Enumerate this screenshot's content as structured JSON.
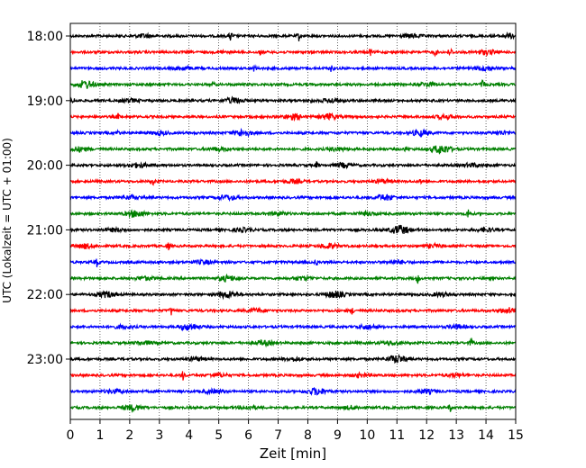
{
  "chart_data": {
    "type": "line",
    "title": "",
    "xlabel": "Zeit  [min]",
    "ylabel": "UTC (Lokalzeit = UTC + 01:00)",
    "xlim": [
      0,
      15
    ],
    "x_ticks": [
      "0",
      "1",
      "2",
      "3",
      "4",
      "5",
      "6",
      "7",
      "8",
      "9",
      "10",
      "11",
      "12",
      "13",
      "14",
      "15"
    ],
    "y_tick_labels": [
      "18:00",
      "19:00",
      "20:00",
      "21:00",
      "22:00",
      "23:00"
    ],
    "grid": "vertical dotted",
    "colors": [
      "#000000",
      "#ff0000",
      "#0000ff",
      "#008000"
    ],
    "traces": [
      {
        "start": "18:00",
        "color": "#000000",
        "events": [
          [
            5.4,
            1.0,
            "spike"
          ],
          [
            7.7,
            0.7,
            "spike"
          ],
          [
            2.5,
            0.3,
            "burst"
          ],
          [
            11.5,
            0.3,
            "burst"
          ],
          [
            14.8,
            0.4,
            "burst"
          ]
        ]
      },
      {
        "start": "18:15",
        "color": "#ff0000",
        "events": [
          [
            5.1,
            0.5,
            "spike"
          ],
          [
            6.4,
            0.4,
            "spike"
          ],
          [
            10.1,
            0.6,
            "spike"
          ],
          [
            12.3,
            0.6,
            "spike"
          ],
          [
            12.8,
            1.0,
            "spike"
          ],
          [
            14.0,
            0.4,
            "burst"
          ]
        ]
      },
      {
        "start": "18:30",
        "color": "#0000ff",
        "events": [
          [
            6.2,
            0.6,
            "spike"
          ],
          [
            8.8,
            0.8,
            "spike"
          ],
          [
            3.8,
            0.3,
            "burst"
          ],
          [
            14.0,
            0.4,
            "burst"
          ]
        ]
      },
      {
        "start": "18:45",
        "color": "#008000",
        "events": [
          [
            0.5,
            0.7,
            "burst"
          ],
          [
            4.8,
            0.4,
            "spike"
          ],
          [
            13.9,
            0.9,
            "spike"
          ],
          [
            12.0,
            0.3,
            "burst"
          ]
        ]
      },
      {
        "start": "19:00",
        "color": "#000000",
        "events": [
          [
            0.1,
            0.6,
            "spike"
          ],
          [
            5.5,
            0.5,
            "burst"
          ],
          [
            8.1,
            0.4,
            "spike"
          ],
          [
            8.8,
            0.4,
            "burst"
          ],
          [
            2.0,
            0.3,
            "burst"
          ]
        ]
      },
      {
        "start": "19:15",
        "color": "#ff0000",
        "events": [
          [
            1.6,
            0.5,
            "spike"
          ],
          [
            7.5,
            0.5,
            "burst"
          ],
          [
            8.7,
            0.5,
            "burst"
          ],
          [
            12.6,
            0.3,
            "burst"
          ]
        ]
      },
      {
        "start": "19:30",
        "color": "#0000ff",
        "events": [
          [
            1.6,
            0.5,
            "spike"
          ],
          [
            5.8,
            0.6,
            "burst"
          ],
          [
            11.8,
            0.5,
            "burst"
          ],
          [
            3.0,
            0.3,
            "burst"
          ],
          [
            14.5,
            0.3,
            "burst"
          ]
        ]
      },
      {
        "start": "19:45",
        "color": "#008000",
        "events": [
          [
            11.3,
            0.5,
            "spike"
          ],
          [
            12.5,
            0.8,
            "burst"
          ],
          [
            0.3,
            0.4,
            "burst"
          ],
          [
            5.0,
            0.3,
            "burst"
          ],
          [
            9.0,
            0.3,
            "burst"
          ]
        ]
      },
      {
        "start": "20:00",
        "color": "#000000",
        "events": [
          [
            8.3,
            0.6,
            "spike"
          ],
          [
            9.2,
            0.4,
            "burst"
          ],
          [
            2.3,
            0.4,
            "burst"
          ],
          [
            13.5,
            0.3,
            "burst"
          ]
        ]
      },
      {
        "start": "20:15",
        "color": "#ff0000",
        "events": [
          [
            2.8,
            0.8,
            "spike"
          ],
          [
            11.8,
            0.4,
            "spike"
          ],
          [
            10.5,
            0.3,
            "burst"
          ],
          [
            7.5,
            0.3,
            "burst"
          ]
        ]
      },
      {
        "start": "20:30",
        "color": "#0000ff",
        "events": [
          [
            5.3,
            0.4,
            "burst"
          ],
          [
            10.6,
            0.5,
            "burst"
          ],
          [
            2.0,
            0.3,
            "burst"
          ]
        ]
      },
      {
        "start": "20:45",
        "color": "#008000",
        "events": [
          [
            2.2,
            0.6,
            "burst"
          ],
          [
            13.4,
            0.8,
            "spike"
          ],
          [
            7.0,
            0.3,
            "burst"
          ],
          [
            10.0,
            0.3,
            "burst"
          ]
        ]
      },
      {
        "start": "21:00",
        "color": "#000000",
        "events": [
          [
            11.1,
            0.8,
            "burst"
          ],
          [
            5.8,
            0.3,
            "burst"
          ],
          [
            1.5,
            0.3,
            "burst"
          ],
          [
            14.0,
            0.3,
            "burst"
          ]
        ]
      },
      {
        "start": "21:15",
        "color": "#ff0000",
        "events": [
          [
            3.3,
            0.8,
            "spike"
          ],
          [
            0.5,
            0.4,
            "burst"
          ],
          [
            8.7,
            0.4,
            "burst"
          ],
          [
            12.2,
            0.3,
            "burst"
          ]
        ]
      },
      {
        "start": "21:30",
        "color": "#0000ff",
        "events": [
          [
            0.9,
            0.7,
            "spike"
          ],
          [
            8.3,
            0.5,
            "spike"
          ],
          [
            4.5,
            0.3,
            "burst"
          ],
          [
            11.0,
            0.3,
            "burst"
          ]
        ]
      },
      {
        "start": "21:45",
        "color": "#008000",
        "events": [
          [
            5.3,
            0.5,
            "burst"
          ],
          [
            11.7,
            0.8,
            "spike"
          ],
          [
            7.8,
            0.3,
            "burst"
          ],
          [
            2.5,
            0.3,
            "burst"
          ]
        ]
      },
      {
        "start": "22:00",
        "color": "#000000",
        "events": [
          [
            1.2,
            0.5,
            "burst"
          ],
          [
            5.3,
            0.6,
            "burst"
          ],
          [
            8.9,
            0.6,
            "burst"
          ],
          [
            12.5,
            0.3,
            "burst"
          ]
        ]
      },
      {
        "start": "22:15",
        "color": "#ff0000",
        "events": [
          [
            3.4,
            0.7,
            "spike"
          ],
          [
            9.5,
            0.6,
            "spike"
          ],
          [
            6.3,
            0.3,
            "burst"
          ],
          [
            14.8,
            0.5,
            "burst"
          ]
        ]
      },
      {
        "start": "22:30",
        "color": "#0000ff",
        "events": [
          [
            4.0,
            0.6,
            "burst"
          ],
          [
            10.0,
            0.4,
            "burst"
          ],
          [
            1.8,
            0.3,
            "burst"
          ],
          [
            13.0,
            0.3,
            "burst"
          ]
        ]
      },
      {
        "start": "22:45",
        "color": "#008000",
        "events": [
          [
            6.5,
            0.4,
            "burst"
          ],
          [
            13.5,
            0.8,
            "spike"
          ],
          [
            10.8,
            0.3,
            "burst"
          ],
          [
            2.5,
            0.3,
            "burst"
          ]
        ]
      },
      {
        "start": "23:00",
        "color": "#000000",
        "events": [
          [
            11.0,
            0.7,
            "burst"
          ],
          [
            4.2,
            0.3,
            "burst"
          ],
          [
            7.5,
            0.3,
            "burst"
          ]
        ]
      },
      {
        "start": "23:15",
        "color": "#ff0000",
        "events": [
          [
            3.8,
            0.8,
            "spike"
          ],
          [
            5.0,
            0.3,
            "burst"
          ],
          [
            9.8,
            0.3,
            "burst"
          ],
          [
            13.0,
            0.3,
            "burst"
          ]
        ]
      },
      {
        "start": "23:30",
        "color": "#0000ff",
        "events": [
          [
            8.3,
            0.6,
            "burst"
          ],
          [
            1.5,
            0.3,
            "burst"
          ],
          [
            4.8,
            0.3,
            "burst"
          ],
          [
            12.0,
            0.3,
            "burst"
          ]
        ]
      },
      {
        "start": "23:45",
        "color": "#008000",
        "events": [
          [
            2.1,
            0.5,
            "burst"
          ],
          [
            12.8,
            0.6,
            "spike"
          ],
          [
            6.0,
            0.3,
            "burst"
          ],
          [
            9.5,
            0.3,
            "burst"
          ]
        ]
      }
    ]
  }
}
